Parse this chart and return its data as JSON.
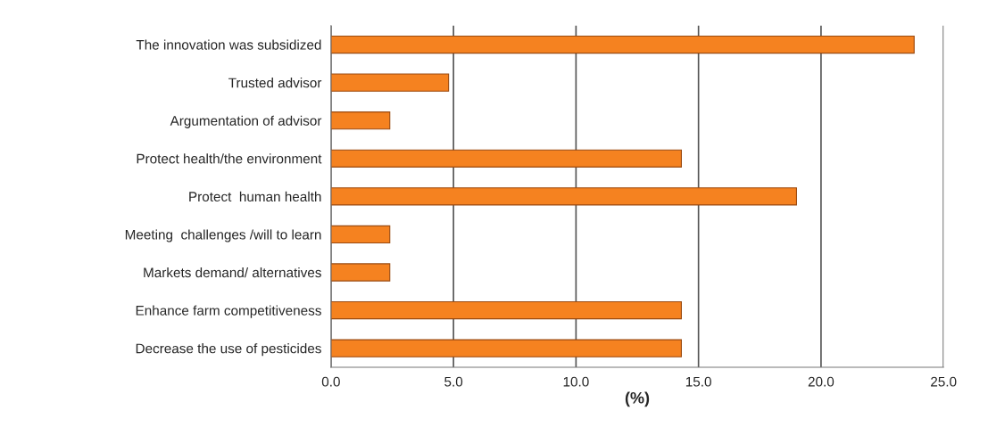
{
  "chart_data": {
    "type": "bar",
    "orientation": "horizontal",
    "xlabel": "(%)",
    "categories": [
      "The innovation was subsidized",
      "Trusted advisor",
      "Argumentation of advisor",
      "Protect health/the environment",
      "Protect  human health",
      "Meeting  challenges /will to learn",
      "Markets demand/ alternatives",
      "Enhance farm competitiveness",
      "Decrease the use of pesticides"
    ],
    "values": [
      23.8,
      4.8,
      2.4,
      14.3,
      19.0,
      2.4,
      2.4,
      14.3,
      14.3
    ],
    "color": "#f58220",
    "xlim": [
      0,
      25
    ],
    "xticks": [
      {
        "value": 0,
        "label": "0.0"
      },
      {
        "value": 5,
        "label": "5.0"
      },
      {
        "value": 10,
        "label": "10.0"
      },
      {
        "value": 15,
        "label": "15.0"
      },
      {
        "value": 20,
        "label": "20.0"
      },
      {
        "value": 25,
        "label": "25.0"
      }
    ],
    "grid": "x",
    "legend": false
  }
}
